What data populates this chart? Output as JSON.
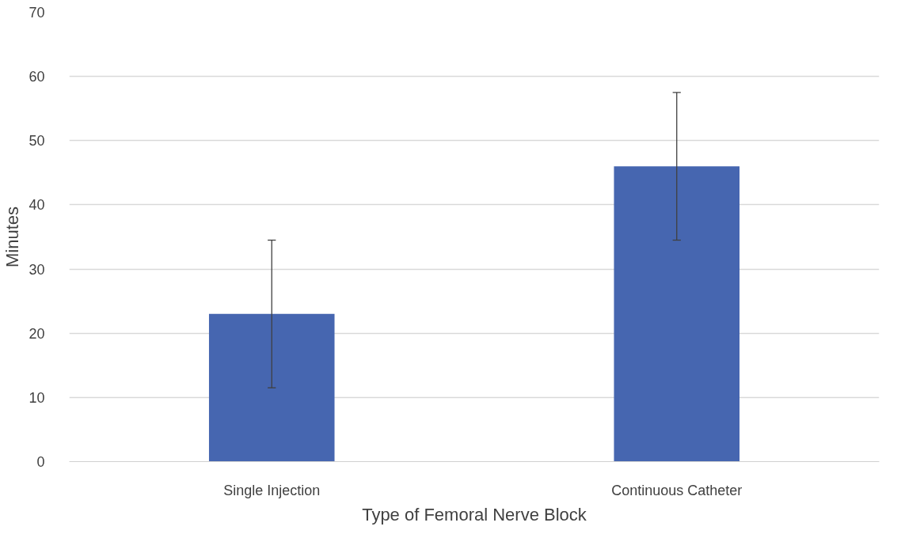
{
  "chart_data": {
    "type": "bar",
    "xlabel": "Type of Femoral Nerve Block",
    "ylabel": "Minutes",
    "categories": [
      "Single Injection",
      "Continuous Catheter"
    ],
    "values": [
      23,
      46
    ],
    "errors": [
      11.5,
      11.5
    ],
    "color": "#4666b0",
    "ylim": [
      0,
      70
    ],
    "yticks": [
      0,
      10,
      20,
      30,
      40,
      50,
      60,
      70
    ],
    "grid": "y"
  }
}
